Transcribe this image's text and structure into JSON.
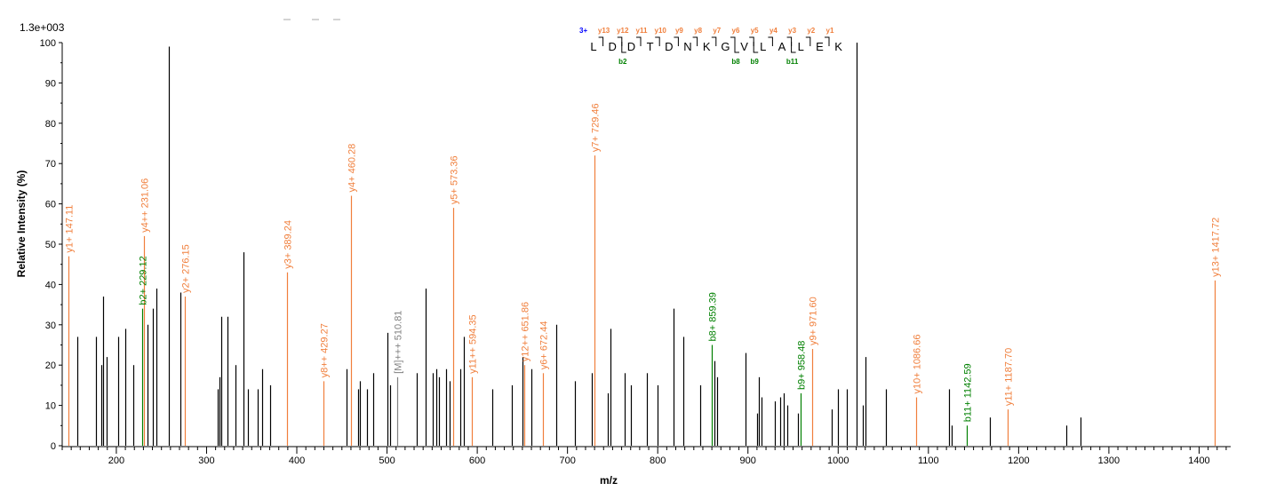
{
  "chart_data": {
    "type": "bar",
    "title": "",
    "scale_label": "1.3e+003",
    "xlabel": "m/z",
    "ylabel": "Relative   Intensity (%)",
    "xlim": [
      140,
      1435
    ],
    "ylim": [
      0,
      100
    ],
    "x_ticks": [
      200,
      300,
      400,
      500,
      600,
      700,
      800,
      900,
      1000,
      1100,
      1200,
      1300,
      1400
    ],
    "y_ticks": [
      0,
      10,
      20,
      30,
      40,
      50,
      60,
      70,
      80,
      90,
      100
    ],
    "colors": {
      "y_ion": "#f07f3c",
      "b_ion": "#008000",
      "precursor": "#808080",
      "unassigned": "#000000",
      "charge": "#0000ff"
    },
    "peaks": [
      {
        "mz": 147.11,
        "intensity": 47,
        "label": "y1+ 147.11",
        "type": "y"
      },
      {
        "mz": 157,
        "intensity": 27
      },
      {
        "mz": 177,
        "intensity": 27
      },
      {
        "mz": 183,
        "intensity": 20
      },
      {
        "mz": 185,
        "intensity": 37
      },
      {
        "mz": 189,
        "intensity": 22
      },
      {
        "mz": 202,
        "intensity": 27
      },
      {
        "mz": 210,
        "intensity": 29
      },
      {
        "mz": 219,
        "intensity": 20
      },
      {
        "mz": 229.12,
        "intensity": 34,
        "label": "b2+ 229.12",
        "type": "b"
      },
      {
        "mz": 231.06,
        "intensity": 52,
        "label": "y4++ 231.06",
        "type": "y"
      },
      {
        "mz": 235,
        "intensity": 30
      },
      {
        "mz": 240,
        "intensity": 34
      },
      {
        "mz": 244,
        "intensity": 39
      },
      {
        "mz": 258,
        "intensity": 99
      },
      {
        "mz": 271,
        "intensity": 38
      },
      {
        "mz": 276.15,
        "intensity": 37,
        "label": "y2+ 276.15",
        "type": "y"
      },
      {
        "mz": 312,
        "intensity": 14
      },
      {
        "mz": 314,
        "intensity": 17
      },
      {
        "mz": 316,
        "intensity": 32
      },
      {
        "mz": 323,
        "intensity": 32
      },
      {
        "mz": 332,
        "intensity": 20
      },
      {
        "mz": 341,
        "intensity": 48
      },
      {
        "mz": 346,
        "intensity": 14
      },
      {
        "mz": 357,
        "intensity": 14
      },
      {
        "mz": 362,
        "intensity": 19
      },
      {
        "mz": 370,
        "intensity": 15
      },
      {
        "mz": 389.24,
        "intensity": 43,
        "label": "y3+ 389.24",
        "type": "y"
      },
      {
        "mz": 429.27,
        "intensity": 16,
        "label": "y8++ 429.27",
        "type": "y"
      },
      {
        "mz": 455,
        "intensity": 19
      },
      {
        "mz": 460.28,
        "intensity": 62,
        "label": "y4+ 460.28",
        "type": "y"
      },
      {
        "mz": 468,
        "intensity": 14
      },
      {
        "mz": 470,
        "intensity": 16
      },
      {
        "mz": 478,
        "intensity": 14
      },
      {
        "mz": 485,
        "intensity": 18
      },
      {
        "mz": 500,
        "intensity": 28
      },
      {
        "mz": 503,
        "intensity": 15
      },
      {
        "mz": 510.81,
        "intensity": 17,
        "label": "[M]+++ 510.81",
        "type": "m"
      },
      {
        "mz": 533,
        "intensity": 18
      },
      {
        "mz": 543,
        "intensity": 39
      },
      {
        "mz": 551,
        "intensity": 18
      },
      {
        "mz": 555,
        "intensity": 19
      },
      {
        "mz": 558,
        "intensity": 17
      },
      {
        "mz": 565,
        "intensity": 19
      },
      {
        "mz": 569,
        "intensity": 16
      },
      {
        "mz": 573.36,
        "intensity": 59,
        "label": "y5+ 573.36",
        "type": "y"
      },
      {
        "mz": 581,
        "intensity": 19
      },
      {
        "mz": 585,
        "intensity": 27
      },
      {
        "mz": 594.35,
        "intensity": 17,
        "label": "y11++ 594.35",
        "type": "y"
      },
      {
        "mz": 617,
        "intensity": 14
      },
      {
        "mz": 638,
        "intensity": 15
      },
      {
        "mz": 651.86,
        "intensity": 20,
        "label": "y12++ 651.86",
        "type": "y"
      },
      {
        "mz": 650,
        "intensity": 22
      },
      {
        "mz": 660,
        "intensity": 19
      },
      {
        "mz": 672.44,
        "intensity": 18,
        "label": "y6+ 672.44",
        "type": "y"
      },
      {
        "mz": 688,
        "intensity": 30
      },
      {
        "mz": 708,
        "intensity": 16
      },
      {
        "mz": 727,
        "intensity": 18
      },
      {
        "mz": 729.46,
        "intensity": 72,
        "label": "y7+ 729.46",
        "type": "y"
      },
      {
        "mz": 745,
        "intensity": 13
      },
      {
        "mz": 748,
        "intensity": 29
      },
      {
        "mz": 763,
        "intensity": 18
      },
      {
        "mz": 770,
        "intensity": 15
      },
      {
        "mz": 788,
        "intensity": 18
      },
      {
        "mz": 800,
        "intensity": 15
      },
      {
        "mz": 818,
        "intensity": 34
      },
      {
        "mz": 828,
        "intensity": 27
      },
      {
        "mz": 847,
        "intensity": 15
      },
      {
        "mz": 859.39,
        "intensity": 25,
        "label": "b8+ 859.39",
        "type": "b"
      },
      {
        "mz": 863,
        "intensity": 21
      },
      {
        "mz": 866,
        "intensity": 17
      },
      {
        "mz": 897,
        "intensity": 23
      },
      {
        "mz": 910,
        "intensity": 8
      },
      {
        "mz": 912,
        "intensity": 17
      },
      {
        "mz": 915,
        "intensity": 12
      },
      {
        "mz": 930,
        "intensity": 11
      },
      {
        "mz": 936,
        "intensity": 12
      },
      {
        "mz": 940,
        "intensity": 13
      },
      {
        "mz": 944,
        "intensity": 10
      },
      {
        "mz": 955,
        "intensity": 8
      },
      {
        "mz": 958.48,
        "intensity": 13,
        "label": "b9+ 958.48",
        "type": "b"
      },
      {
        "mz": 971.6,
        "intensity": 24,
        "label": "y9+ 971.60",
        "type": "y"
      },
      {
        "mz": 993,
        "intensity": 9
      },
      {
        "mz": 1000,
        "intensity": 14
      },
      {
        "mz": 1010,
        "intensity": 14
      },
      {
        "mz": 1020,
        "intensity": 100
      },
      {
        "mz": 1027,
        "intensity": 10
      },
      {
        "mz": 1030,
        "intensity": 22
      },
      {
        "mz": 1053,
        "intensity": 14
      },
      {
        "mz": 1086.66,
        "intensity": 12,
        "label": "y10+ 1086.66",
        "type": "y"
      },
      {
        "mz": 1123,
        "intensity": 14
      },
      {
        "mz": 1126,
        "intensity": 5
      },
      {
        "mz": 1142.59,
        "intensity": 5,
        "label": "b11+ 1142.59",
        "type": "b"
      },
      {
        "mz": 1168,
        "intensity": 7
      },
      {
        "mz": 1187.7,
        "intensity": 9,
        "label": "y11+ 1187.70",
        "type": "y"
      },
      {
        "mz": 1253,
        "intensity": 5
      },
      {
        "mz": 1269,
        "intensity": 7
      },
      {
        "mz": 1417.72,
        "intensity": 41,
        "label": "y13+ 1417.72",
        "type": "y"
      }
    ],
    "sequence": {
      "charge": "3+",
      "residues": [
        "L",
        "D",
        "D",
        "T",
        "D",
        "N",
        "K",
        "G",
        "V",
        "L",
        "A",
        "L",
        "E",
        "K"
      ],
      "y_labels": [
        {
          "after": 1,
          "label": "y13"
        },
        {
          "after": 2,
          "label": "y12"
        },
        {
          "after": 3,
          "label": "y11"
        },
        {
          "after": 4,
          "label": "y10"
        },
        {
          "after": 5,
          "label": "y9"
        },
        {
          "after": 6,
          "label": "y8"
        },
        {
          "after": 7,
          "label": "y7"
        },
        {
          "after": 8,
          "label": "y6"
        },
        {
          "after": 9,
          "label": "y5"
        },
        {
          "after": 10,
          "label": "y4"
        },
        {
          "after": 11,
          "label": "y3"
        },
        {
          "after": 12,
          "label": "y2"
        },
        {
          "after": 13,
          "label": "y1"
        }
      ],
      "b_labels": [
        {
          "after": 2,
          "label": "b2"
        },
        {
          "after": 8,
          "label": "b8"
        },
        {
          "after": 9,
          "label": "b9"
        },
        {
          "after": 11,
          "label": "b11"
        }
      ]
    }
  }
}
